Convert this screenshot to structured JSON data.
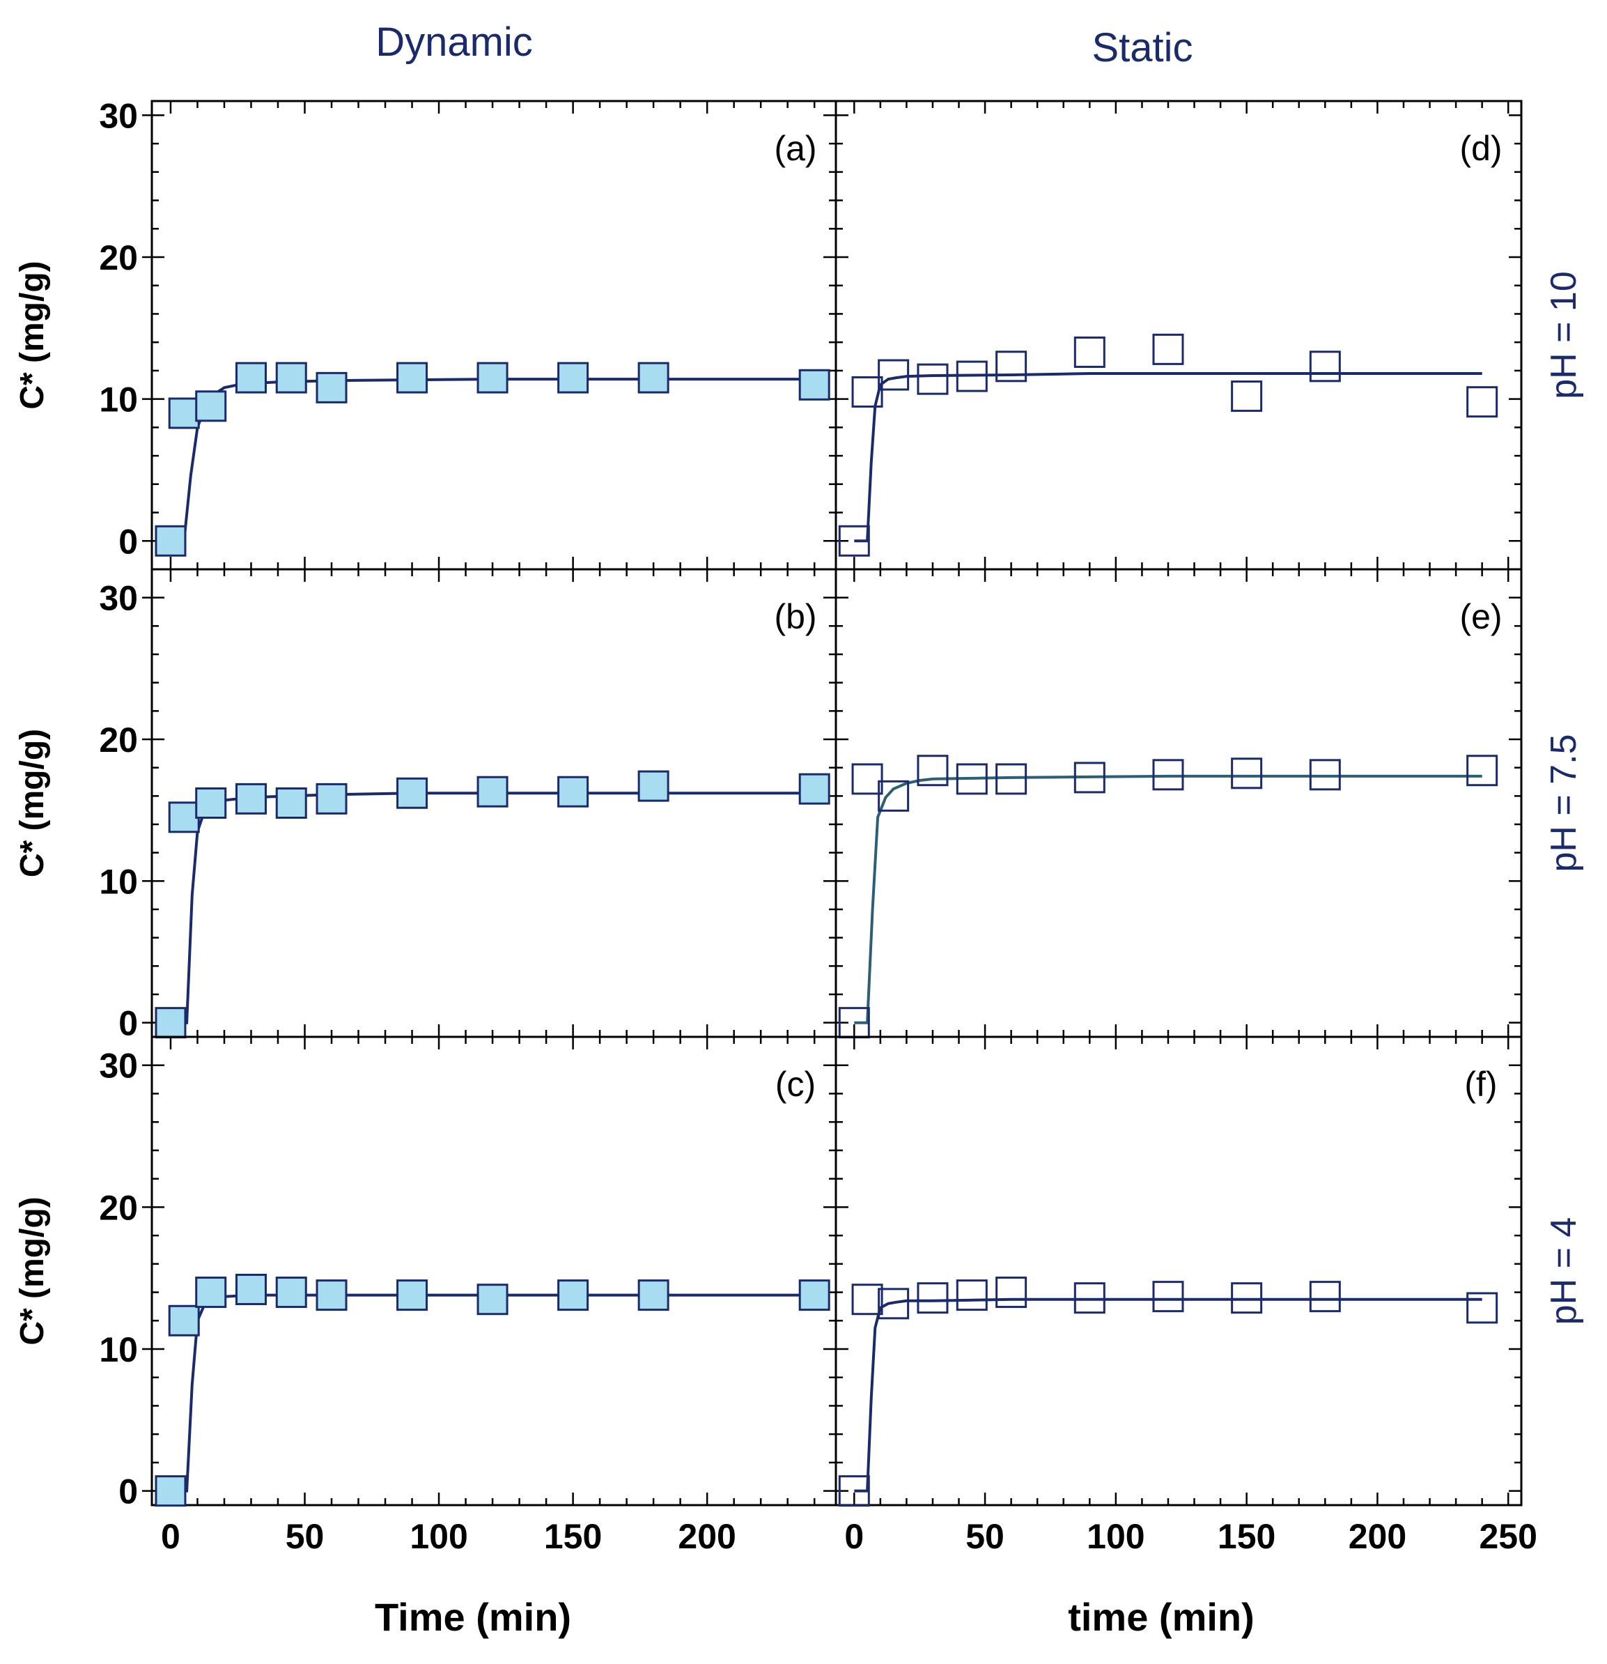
{
  "colors": {
    "navy": "#1b2a6b",
    "axis": "#000000",
    "marker_fill": "#a8dcf0",
    "curve_teal": "#2c5f75",
    "background": "#ffffff"
  },
  "headers": {
    "left": "Dynamic",
    "right": "Static"
  },
  "chart_data": [
    {
      "panel": "(a)",
      "type": "scatter",
      "condition": "pH = 10",
      "mode": "Dynamic",
      "xlabel": "",
      "ylabel": "C* (mg/g)",
      "xlim": [
        -7,
        248
      ],
      "ylim": [
        -2,
        31
      ],
      "xticks": [],
      "yticks": [
        "0",
        "10",
        "20",
        "30"
      ],
      "points": {
        "x": [
          0,
          5,
          15,
          30,
          45,
          60,
          90,
          120,
          150,
          180,
          240
        ],
        "y": [
          0,
          9,
          9.5,
          11.5,
          11.5,
          10.8,
          11.5,
          11.5,
          11.5,
          11.5,
          11
        ]
      },
      "fit": {
        "name": "fit",
        "x": [
          0,
          5,
          7.5,
          10,
          13,
          16,
          20,
          25,
          30,
          40,
          50,
          60,
          90,
          120,
          150,
          180,
          240
        ],
        "y": [
          0,
          0,
          4.6,
          8.0,
          9.5,
          10.3,
          10.8,
          11.0,
          11.1,
          11.2,
          11.25,
          11.3,
          11.35,
          11.4,
          11.4,
          11.4,
          11.4
        ]
      }
    },
    {
      "panel": "(b)",
      "type": "scatter",
      "condition": "pH = 7.5",
      "mode": "Dynamic",
      "xlabel": "",
      "ylabel": "C* (mg/g)",
      "xlim": [
        -7,
        248
      ],
      "ylim": [
        -1,
        32
      ],
      "xticks": [],
      "yticks": [
        "0",
        "10",
        "20",
        "30"
      ],
      "points": {
        "x": [
          0,
          5,
          15,
          30,
          45,
          60,
          90,
          120,
          150,
          180,
          240
        ],
        "y": [
          0,
          14.5,
          15.5,
          15.8,
          15.5,
          15.8,
          16.2,
          16.3,
          16.3,
          16.7,
          16.5
        ]
      },
      "fit": {
        "name": "fit",
        "x": [
          0,
          6,
          8,
          10,
          12,
          15,
          20,
          30,
          45,
          60,
          90,
          120,
          150,
          180,
          240
        ],
        "y": [
          0,
          0,
          9,
          13.5,
          14.6,
          15.3,
          15.7,
          15.9,
          16.0,
          16.1,
          16.2,
          16.2,
          16.2,
          16.2,
          16.2
        ]
      }
    },
    {
      "panel": "(c)",
      "type": "scatter",
      "condition": "pH = 4",
      "mode": "Dynamic",
      "xlabel": "Time (min)",
      "ylabel": "C* (mg/g)",
      "xlim": [
        -7,
        248
      ],
      "ylim": [
        -1,
        32
      ],
      "xticks": [
        "0",
        "50",
        "100",
        "150",
        "200"
      ],
      "yticks": [
        "0",
        "10",
        "20",
        "30"
      ],
      "points": {
        "x": [
          0,
          5,
          15,
          30,
          45,
          60,
          90,
          120,
          150,
          180,
          240
        ],
        "y": [
          0,
          12,
          14,
          14.2,
          14,
          13.8,
          13.8,
          13.5,
          13.8,
          13.8,
          13.8
        ]
      },
      "fit": {
        "name": "fit",
        "x": [
          0,
          6,
          8,
          10,
          13,
          16,
          20,
          30,
          60,
          120,
          180,
          240
        ],
        "y": [
          0,
          0,
          7.5,
          12.0,
          13.3,
          13.6,
          13.7,
          13.8,
          13.8,
          13.8,
          13.8,
          13.8
        ]
      }
    },
    {
      "panel": "(d)",
      "type": "scatter",
      "condition": "pH = 10",
      "mode": "Static",
      "xlabel": "",
      "ylabel": "",
      "xlim": [
        -7,
        255
      ],
      "ylim": [
        -2,
        31
      ],
      "xticks": [],
      "yticks": [],
      "points": {
        "x": [
          0,
          5,
          15,
          30,
          45,
          60,
          90,
          120,
          150,
          180,
          240
        ],
        "y": [
          0,
          10.5,
          11.7,
          11.4,
          11.6,
          12.3,
          13.3,
          13.5,
          10.2,
          12.3,
          9.8
        ]
      },
      "fit": {
        "name": "fit",
        "x": [
          0,
          5,
          6.5,
          8,
          10,
          13,
          16,
          20,
          30,
          60,
          90,
          120,
          180,
          240
        ],
        "y": [
          0,
          0,
          5.5,
          9.5,
          11.0,
          11.4,
          11.5,
          11.6,
          11.65,
          11.7,
          11.8,
          11.8,
          11.8,
          11.8
        ]
      }
    },
    {
      "panel": "(e)",
      "type": "scatter",
      "condition": "pH = 7.5",
      "mode": "Static",
      "xlabel": "",
      "ylabel": "",
      "xlim": [
        -7,
        255
      ],
      "ylim": [
        -1,
        32
      ],
      "xticks": [],
      "yticks": [],
      "points": {
        "x": [
          0,
          5,
          15,
          30,
          45,
          60,
          90,
          120,
          150,
          180,
          240
        ],
        "y": [
          0,
          17.2,
          16,
          17.8,
          17.2,
          17.2,
          17.3,
          17.5,
          17.6,
          17.5,
          17.8
        ]
      },
      "fit": {
        "name": "fit",
        "x": [
          0,
          5,
          7,
          9,
          12,
          15,
          20,
          25,
          30,
          45,
          60,
          90,
          120,
          180,
          240
        ],
        "y": [
          0,
          0,
          8.0,
          14.5,
          15.9,
          16.5,
          16.9,
          17.1,
          17.2,
          17.25,
          17.3,
          17.35,
          17.4,
          17.4,
          17.4
        ]
      }
    },
    {
      "panel": "(f)",
      "type": "scatter",
      "condition": "pH = 4",
      "mode": "Static",
      "xlabel": "time (min)",
      "ylabel": "",
      "xlim": [
        -7,
        255
      ],
      "ylim": [
        -1,
        32
      ],
      "xticks": [
        "0",
        "50",
        "100",
        "150",
        "200",
        "250"
      ],
      "yticks": [],
      "points": {
        "x": [
          0,
          5,
          15,
          30,
          45,
          60,
          90,
          120,
          150,
          180,
          240
        ],
        "y": [
          0,
          13.5,
          13.2,
          13.6,
          13.8,
          14,
          13.6,
          13.7,
          13.6,
          13.7,
          12.9
        ]
      },
      "fit": {
        "name": "fit",
        "x": [
          0,
          5,
          6.5,
          8,
          10,
          13,
          16,
          20,
          30,
          60,
          120,
          180,
          240
        ],
        "y": [
          0,
          0,
          6.5,
          11.5,
          12.9,
          13.2,
          13.3,
          13.4,
          13.4,
          13.5,
          13.5,
          13.5,
          13.5
        ]
      }
    }
  ]
}
